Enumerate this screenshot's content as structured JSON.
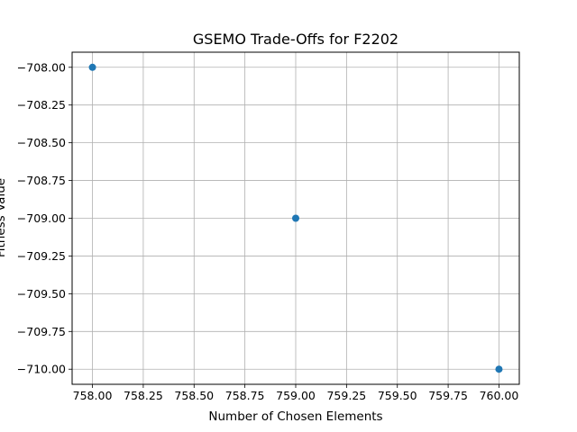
{
  "chart_data": {
    "type": "scatter",
    "title": "GSEMO Trade-Offs for F2202",
    "xlabel": "Number of Chosen Elements",
    "ylabel": "Fitness Value",
    "xlim": [
      757.9,
      760.1
    ],
    "ylim": [
      -710.1,
      -707.9
    ],
    "xticks": [
      "758.00",
      "758.25",
      "758.50",
      "758.75",
      "759.00",
      "759.25",
      "759.50",
      "759.75",
      "760.00"
    ],
    "yticks": [
      "−708.00",
      "−708.25",
      "−708.50",
      "−708.75",
      "−709.00",
      "−709.25",
      "−709.50",
      "−709.75",
      "−710.00"
    ],
    "xtick_values": [
      758.0,
      758.25,
      758.5,
      758.75,
      759.0,
      759.25,
      759.5,
      759.75,
      760.0
    ],
    "ytick_values": [
      -708.0,
      -708.25,
      -708.5,
      -708.75,
      -709.0,
      -709.25,
      -709.5,
      -709.75,
      -710.0
    ],
    "grid": true,
    "series": [
      {
        "color": "#1f77b4",
        "points": [
          {
            "x": 758,
            "y": -708
          },
          {
            "x": 759,
            "y": -709
          },
          {
            "x": 760,
            "y": -710
          }
        ]
      }
    ]
  }
}
